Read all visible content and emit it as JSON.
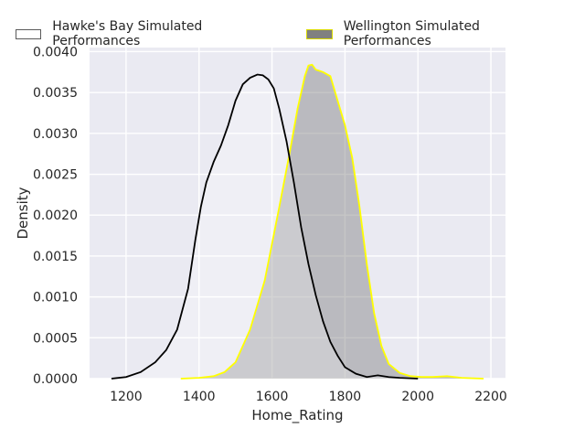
{
  "chart_data": {
    "type": "area",
    "xlabel": "Home_Rating",
    "ylabel": "Density",
    "xlim": [
      1100,
      2240
    ],
    "ylim": [
      0,
      0.00405
    ],
    "x_ticks": [
      "1200",
      "1400",
      "1600",
      "1800",
      "2000",
      "2200"
    ],
    "y_ticks": [
      "0.0000",
      "0.0005",
      "0.0010",
      "0.0015",
      "0.0020",
      "0.0025",
      "0.0030",
      "0.0035",
      "0.0040"
    ],
    "grid": true,
    "legend_position": "top",
    "series": [
      {
        "name": "Hawke's Bay Simulated Performances",
        "color": "#000000",
        "fill": "#ffffff",
        "x": [
          1160,
          1200,
          1240,
          1280,
          1310,
          1340,
          1370,
          1390,
          1405,
          1420,
          1440,
          1460,
          1480,
          1500,
          1520,
          1540,
          1560,
          1575,
          1590,
          1605,
          1620,
          1640,
          1660,
          1680,
          1700,
          1720,
          1740,
          1760,
          1780,
          1800,
          1830,
          1860,
          1890,
          1920,
          1950,
          2000
        ],
        "y": [
          0.0,
          2e-05,
          8e-05,
          0.0002,
          0.00035,
          0.0006,
          0.0011,
          0.0017,
          0.0021,
          0.0024,
          0.00265,
          0.00285,
          0.0031,
          0.0034,
          0.0036,
          0.00368,
          0.00372,
          0.00371,
          0.00366,
          0.00355,
          0.0033,
          0.0029,
          0.0024,
          0.00185,
          0.0014,
          0.00102,
          0.0007,
          0.00045,
          0.00028,
          0.00014,
          6e-05,
          2e-05,
          4e-05,
          2e-05,
          1e-05,
          0.0
        ]
      },
      {
        "name": "Wellington Simulated Performances",
        "color": "#ffff00",
        "fill": "#808080",
        "x": [
          1350,
          1400,
          1440,
          1470,
          1500,
          1540,
          1580,
          1620,
          1650,
          1670,
          1690,
          1700,
          1710,
          1720,
          1740,
          1760,
          1780,
          1800,
          1820,
          1840,
          1860,
          1880,
          1900,
          1920,
          1950,
          1980,
          2010,
          2040,
          2080,
          2120,
          2180
        ],
        "y": [
          0.0,
          1e-05,
          3e-05,
          8e-05,
          0.0002,
          0.0006,
          0.0012,
          0.0021,
          0.0028,
          0.0033,
          0.0037,
          0.00383,
          0.00384,
          0.00378,
          0.00375,
          0.0037,
          0.0034,
          0.0031,
          0.0027,
          0.0021,
          0.0014,
          0.0008,
          0.0004,
          0.00018,
          7e-05,
          3e-05,
          2e-05,
          2e-05,
          3e-05,
          1e-05,
          0.0
        ]
      }
    ]
  }
}
